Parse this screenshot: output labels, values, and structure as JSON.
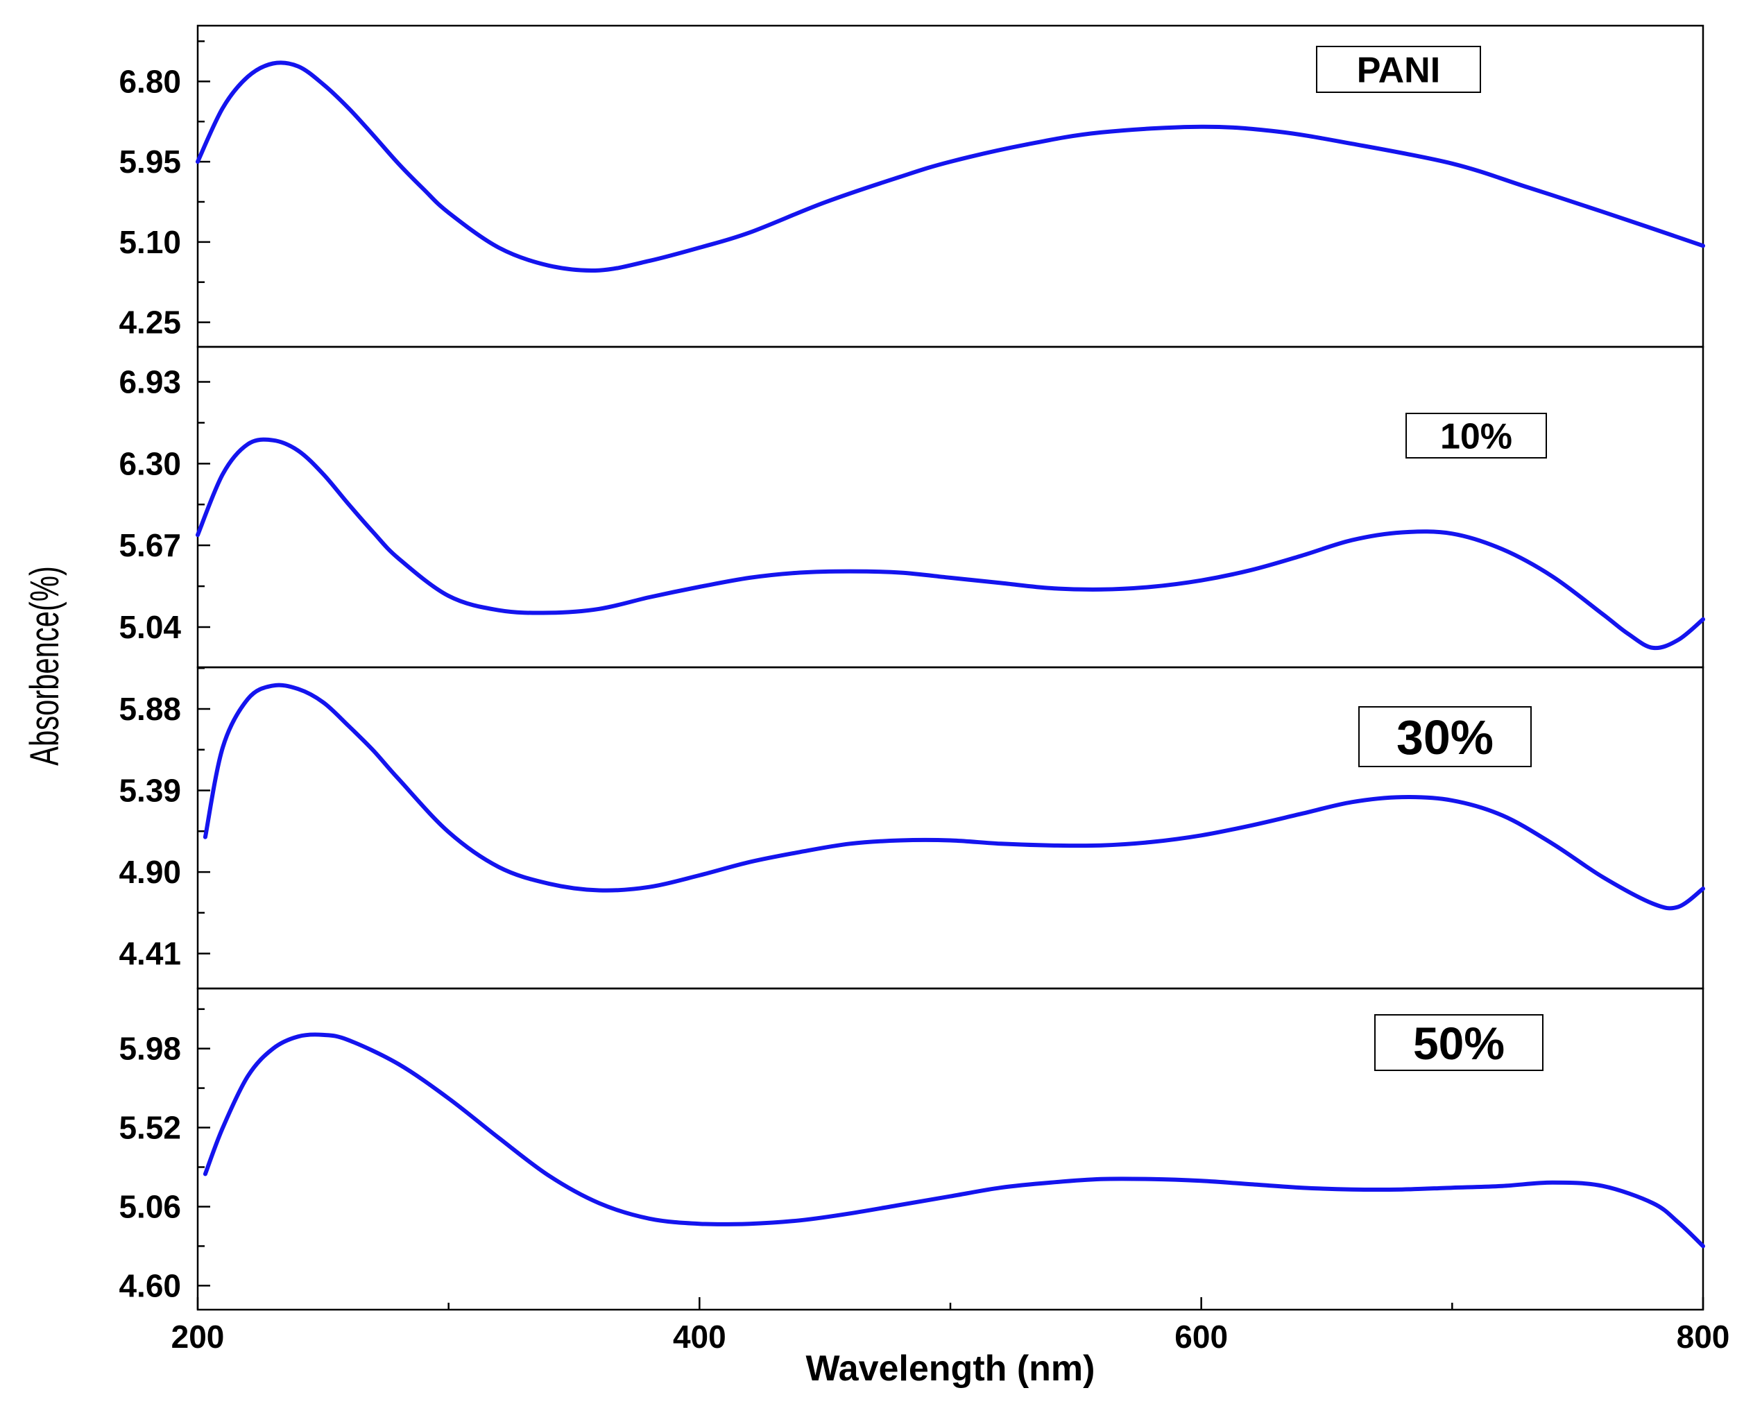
{
  "chart_data": {
    "type": "line",
    "xlabel": "Wavelength (nm)",
    "ylabel": "Absorbence(%)",
    "xlim": [
      200,
      800
    ],
    "x_ticks": [
      200,
      400,
      600,
      800
    ],
    "x_tick_labels": [
      "200",
      "400",
      "600",
      "800"
    ],
    "line_color": "#1414EE",
    "panels": [
      {
        "name": "PANI",
        "label": "PANI",
        "ylim": [
          3.99,
          7.39
        ],
        "y_ticks": [
          4.25,
          5.1,
          5.95,
          6.8
        ],
        "y_tick_labels": [
          "4.25",
          "5.10",
          "5.95",
          "6.80"
        ],
        "series": {
          "x": [
            200,
            210,
            220,
            230,
            240,
            250,
            260,
            270,
            280,
            290,
            300,
            320,
            340,
            360,
            380,
            400,
            420,
            450,
            480,
            500,
            530,
            560,
            600,
            630,
            660,
            700,
            730,
            760,
            800
          ],
          "y": [
            5.95,
            6.52,
            6.85,
            6.99,
            6.96,
            6.77,
            6.52,
            6.23,
            5.93,
            5.66,
            5.41,
            5.04,
            4.85,
            4.8,
            4.9,
            5.04,
            5.2,
            5.52,
            5.79,
            5.95,
            6.13,
            6.26,
            6.32,
            6.27,
            6.14,
            5.93,
            5.68,
            5.42,
            5.06
          ]
        }
      },
      {
        "name": "10%",
        "label": "10%",
        "ylim": [
          4.73,
          7.2
        ],
        "y_ticks": [
          5.04,
          5.67,
          6.3,
          6.93
        ],
        "y_tick_labels": [
          "5.04",
          "5.67",
          "6.30",
          "6.93"
        ],
        "series": {
          "x": [
            200,
            210,
            220,
            230,
            240,
            250,
            260,
            270,
            280,
            300,
            320,
            340,
            360,
            380,
            400,
            420,
            440,
            460,
            480,
            500,
            520,
            540,
            560,
            580,
            600,
            620,
            640,
            660,
            680,
            700,
            720,
            740,
            760,
            770,
            780,
            790,
            800
          ],
          "y": [
            5.75,
            6.22,
            6.45,
            6.48,
            6.4,
            6.22,
            5.99,
            5.77,
            5.57,
            5.28,
            5.17,
            5.15,
            5.18,
            5.27,
            5.35,
            5.42,
            5.46,
            5.47,
            5.46,
            5.42,
            5.38,
            5.34,
            5.33,
            5.35,
            5.4,
            5.48,
            5.59,
            5.71,
            5.77,
            5.76,
            5.64,
            5.43,
            5.14,
            4.99,
            4.88,
            4.94,
            5.1
          ]
        }
      },
      {
        "name": "30%",
        "label": "30%",
        "ylim": [
          4.2,
          6.13
        ],
        "y_ticks": [
          4.41,
          4.9,
          5.39,
          5.88
        ],
        "y_tick_labels": [
          "4.41",
          "4.90",
          "5.39",
          "5.88"
        ],
        "series": {
          "x": [
            203,
            210,
            220,
            230,
            240,
            250,
            260,
            270,
            280,
            300,
            320,
            340,
            360,
            380,
            400,
            420,
            440,
            460,
            480,
            500,
            520,
            540,
            560,
            580,
            600,
            620,
            640,
            660,
            680,
            700,
            720,
            740,
            760,
            780,
            790,
            800
          ],
          "y": [
            5.11,
            5.65,
            5.94,
            6.02,
            6.0,
            5.92,
            5.78,
            5.63,
            5.46,
            5.14,
            4.93,
            4.83,
            4.79,
            4.81,
            4.88,
            4.96,
            5.02,
            5.07,
            5.09,
            5.09,
            5.07,
            5.06,
            5.06,
            5.08,
            5.12,
            5.18,
            5.25,
            5.32,
            5.35,
            5.33,
            5.24,
            5.07,
            4.87,
            4.71,
            4.69,
            4.8
          ]
        }
      },
      {
        "name": "50%",
        "label": "50%",
        "ylim": [
          4.46,
          6.33
        ],
        "y_ticks": [
          4.6,
          5.06,
          5.52,
          5.98
        ],
        "y_tick_labels": [
          "4.60",
          "5.06",
          "5.52",
          "5.98"
        ],
        "series": {
          "x": [
            203,
            210,
            220,
            230,
            240,
            250,
            260,
            280,
            300,
            320,
            340,
            360,
            380,
            400,
            420,
            440,
            460,
            480,
            500,
            520,
            540,
            560,
            580,
            600,
            620,
            640,
            660,
            680,
            700,
            720,
            740,
            760,
            780,
            790,
            800
          ],
          "y": [
            5.25,
            5.52,
            5.82,
            5.98,
            6.05,
            6.06,
            6.03,
            5.89,
            5.69,
            5.46,
            5.24,
            5.08,
            4.99,
            4.96,
            4.96,
            4.98,
            5.02,
            5.07,
            5.12,
            5.17,
            5.2,
            5.22,
            5.22,
            5.21,
            5.19,
            5.17,
            5.16,
            5.16,
            5.17,
            5.18,
            5.2,
            5.18,
            5.08,
            4.97,
            4.83
          ]
        }
      }
    ]
  }
}
